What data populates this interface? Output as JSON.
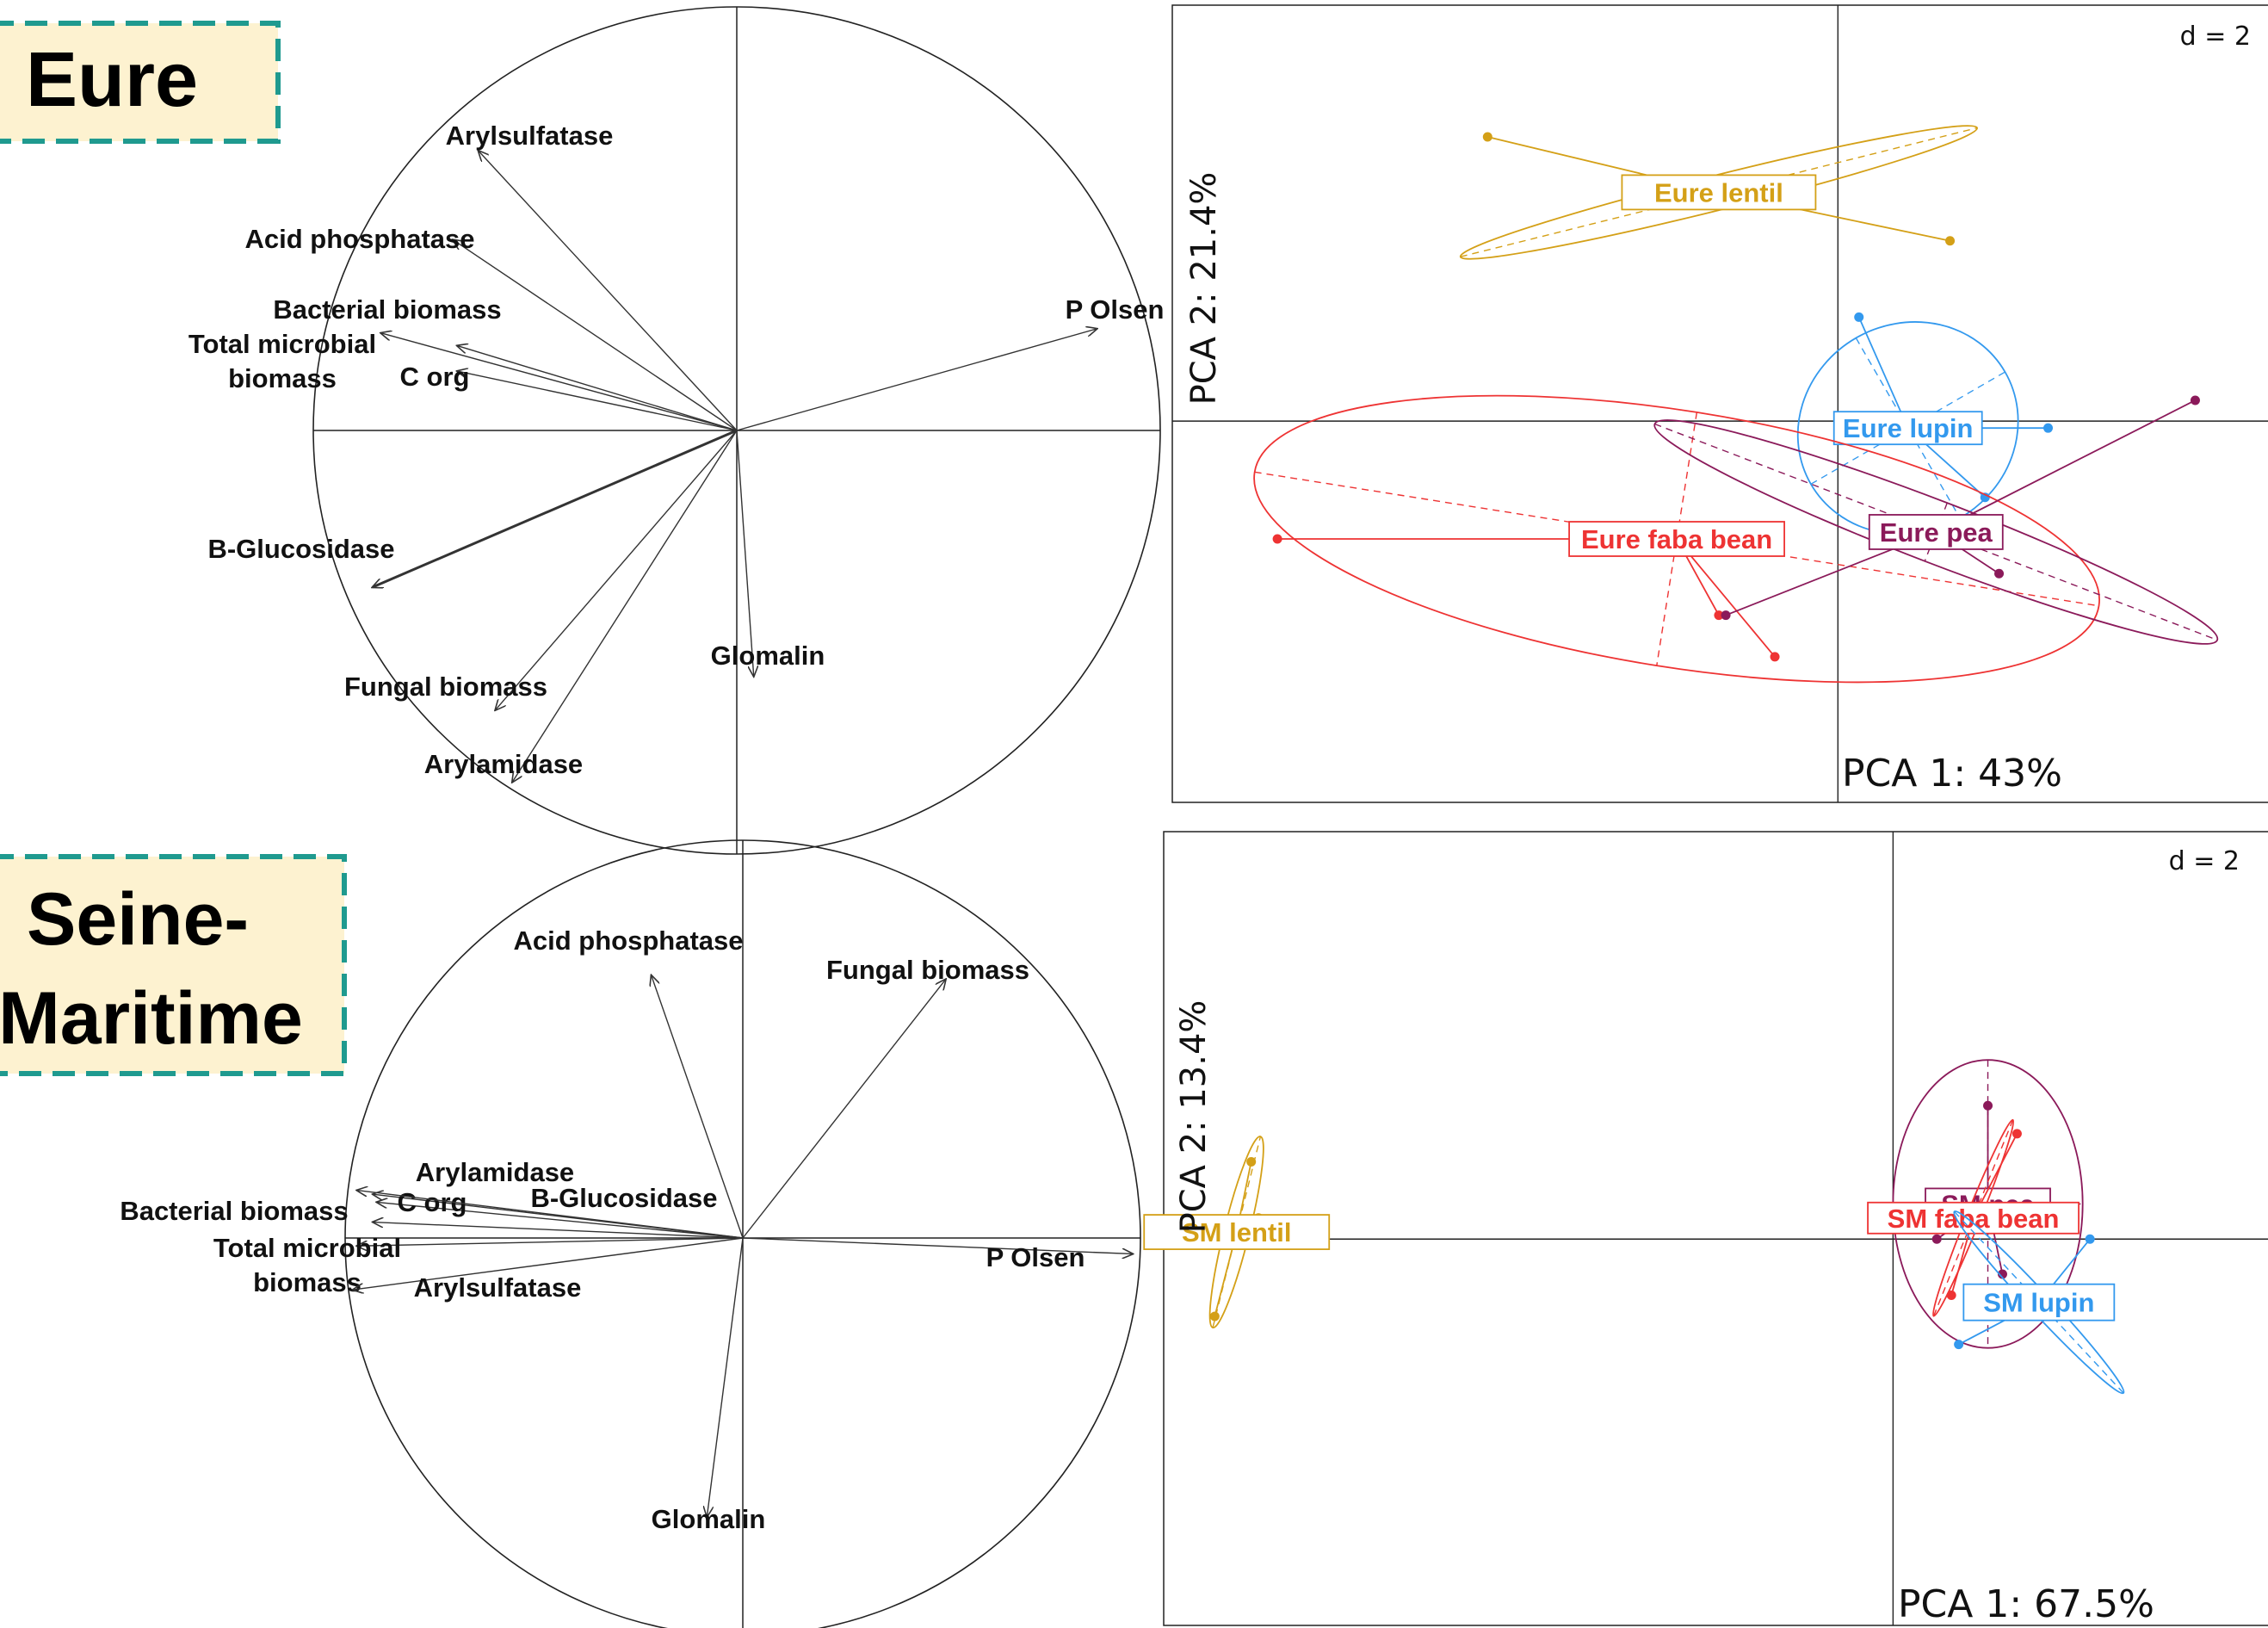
{
  "site_labels": {
    "eure": "Eure",
    "sm_line1": "Seine-",
    "sm_line2": "Maritime"
  },
  "colors": {
    "site_box_fill": "#fdf2d0",
    "site_box_border": "#1f9a8f",
    "lentil": "#d4a017",
    "lupin": "#3399ee",
    "faba": "#ee3333",
    "pea": "#8b1a5a",
    "arrow": "#333333"
  },
  "chart_data": [
    {
      "id": "eure-correlation-circle",
      "type": "scatter",
      "kind": "correlation-circle",
      "title": "",
      "xlabel": "",
      "ylabel": "",
      "xlim": [
        -1,
        1
      ],
      "ylim": [
        -1,
        1
      ],
      "variables": [
        {
          "name": "Arylsulfatase",
          "x": -0.61,
          "y": 0.66
        },
        {
          "name": "Acid phosphatase",
          "x": -0.67,
          "y": 0.45
        },
        {
          "name": "Bacterial biomass",
          "x": -0.66,
          "y": 0.2
        },
        {
          "name": "Total microbial\nbiomass",
          "x": -0.84,
          "y": 0.23
        },
        {
          "name": "C org",
          "x": -0.66,
          "y": 0.14
        },
        {
          "name": "P Olsen",
          "x": 0.85,
          "y": 0.24
        },
        {
          "name": "B-Glucosidase",
          "x": -0.86,
          "y": -0.37
        },
        {
          "name": "Glomalin",
          "x": 0.04,
          "y": -0.58
        },
        {
          "name": "Fungal biomass",
          "x": -0.57,
          "y": -0.66
        },
        {
          "name": "Arylamidase",
          "x": -0.53,
          "y": -0.83
        }
      ]
    },
    {
      "id": "eure-pca",
      "type": "scatter",
      "kind": "pca-individuals",
      "title": "",
      "xlabel": "PCA 1: 43%",
      "ylabel": "PCA 2: 21.4%",
      "scale_label": "d = 2",
      "xlim": [
        -9.5,
        6.2
      ],
      "ylim": [
        -5.5,
        6.0
      ],
      "groups": [
        {
          "name": "Eure lentil",
          "colorKey": "lentil",
          "center": [
            -1.7,
            3.3
          ],
          "points": [
            [
              -5.0,
              4.1
            ],
            [
              -0.6,
              3.4
            ],
            [
              1.6,
              2.6
            ]
          ],
          "ellipse": {
            "rx": 3.8,
            "ry": 0.25,
            "angle_deg": -14
          }
        },
        {
          "name": "Eure lupin",
          "colorKey": "lupin",
          "center": [
            1.0,
            -0.1
          ],
          "points": [
            [
              0.3,
              1.5
            ],
            [
              3.0,
              -0.1
            ],
            [
              2.1,
              -1.1
            ]
          ],
          "ellipse": {
            "rx": 1.6,
            "ry": 1.5,
            "angle_deg": -30
          }
        },
        {
          "name": "Eure faba bean",
          "colorKey": "faba",
          "center": [
            -2.3,
            -1.7
          ],
          "points": [
            [
              -8.0,
              -1.7
            ],
            [
              -1.7,
              -2.8
            ],
            [
              -0.9,
              -3.4
            ]
          ],
          "ellipse": {
            "rx": 6.1,
            "ry": 1.85,
            "angle_deg": 9
          }
        },
        {
          "name": "Eure pea",
          "colorKey": "pea",
          "center": [
            1.4,
            -1.6
          ],
          "points": [
            [
              5.1,
              0.3
            ],
            [
              2.3,
              -2.2
            ],
            [
              -1.6,
              -2.8
            ]
          ],
          "ellipse": {
            "rx": 4.3,
            "ry": 0.45,
            "angle_deg": 21
          }
        }
      ]
    },
    {
      "id": "sm-correlation-circle",
      "type": "scatter",
      "kind": "correlation-circle",
      "title": "",
      "xlabel": "",
      "ylabel": "",
      "xlim": [
        -1,
        1
      ],
      "ylim": [
        -1,
        1
      ],
      "variables": [
        {
          "name": "Acid phosphatase",
          "x": -0.23,
          "y": 0.66
        },
        {
          "name": "Fungal biomass",
          "x": 0.51,
          "y": 0.65
        },
        {
          "name": "Arylamidase",
          "x": -0.93,
          "y": 0.11
        },
        {
          "name": "C org",
          "x": -0.92,
          "y": 0.09
        },
        {
          "name": "B-Glucosidase",
          "x": -0.93,
          "y": 0.04
        },
        {
          "name": "Bacterial biomass",
          "x": -0.97,
          "y": 0.12
        },
        {
          "name": "Total microbial\nbiomass",
          "x": -0.97,
          "y": -0.02
        },
        {
          "name": "Arylsulfatase",
          "x": -0.98,
          "y": -0.13
        },
        {
          "name": "P Olsen",
          "x": 0.98,
          "y": -0.04
        },
        {
          "name": "Glomalin",
          "x": -0.09,
          "y": -0.7
        }
      ]
    },
    {
      "id": "sm-pca",
      "type": "scatter",
      "kind": "pca-individuals",
      "title": "",
      "xlabel": "PCA 1: 67.5%",
      "ylabel": "PCA 2: 13.4%",
      "scale_label": "d = 2",
      "xlim": [
        -10.0,
        5.2
      ],
      "ylim": [
        -5.5,
        5.8
      ],
      "groups": [
        {
          "name": "SM lentil",
          "colorKey": "lentil",
          "center": [
            -9.0,
            0.1
          ],
          "points": [
            [
              -8.8,
              1.1
            ],
            [
              -8.7,
              0.3
            ],
            [
              -9.3,
              -1.1
            ]
          ],
          "ellipse": {
            "rx": 1.35,
            "ry": 0.18,
            "angle_deg": -76
          }
        },
        {
          "name": "SM pea",
          "colorKey": "pea",
          "center": [
            1.3,
            0.5
          ],
          "points": [
            [
              1.3,
              1.9
            ],
            [
              0.6,
              0.0
            ],
            [
              1.5,
              -0.5
            ]
          ],
          "ellipse": {
            "rx": 1.3,
            "ry": 2.05,
            "angle_deg": 0
          }
        },
        {
          "name": "SM faba bean",
          "colorKey": "faba",
          "center": [
            1.1,
            0.3
          ],
          "points": [
            [
              1.7,
              1.5
            ],
            [
              0.8,
              -0.8
            ]
          ],
          "ellipse": {
            "rx": 1.45,
            "ry": 0.1,
            "angle_deg": -68
          }
        },
        {
          "name": "SM lupin",
          "colorKey": "lupin",
          "center": [
            2.0,
            -0.9
          ],
          "points": [
            [
              2.7,
              0.0
            ],
            [
              0.9,
              -1.5
            ]
          ],
          "ellipse": {
            "rx": 1.7,
            "ry": 0.15,
            "angle_deg": 47
          }
        }
      ]
    }
  ]
}
